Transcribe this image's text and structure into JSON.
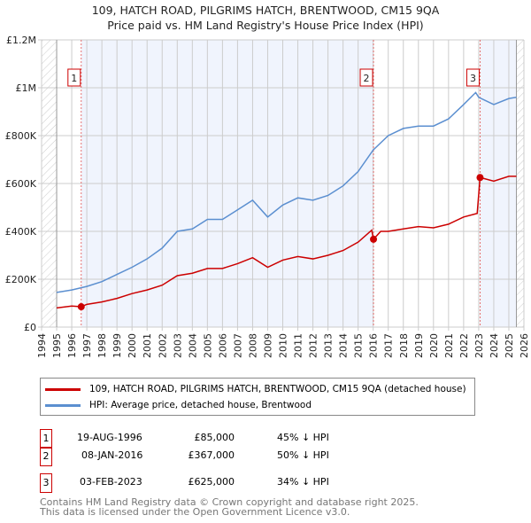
{
  "chart_data": {
    "type": "line",
    "title": "109, HATCH ROAD, PILGRIMS HATCH, BRENTWOOD, CM15 9QA",
    "subtitle": "Price paid vs. HM Land Registry's House Price Index (HPI)",
    "xlim": [
      1994,
      2026
    ],
    "ylim": [
      0,
      1200000
    ],
    "xticks": [
      "1994",
      "1995",
      "1996",
      "1997",
      "1998",
      "1999",
      "2000",
      "2001",
      "2002",
      "2003",
      "2004",
      "2005",
      "2006",
      "2007",
      "2008",
      "2009",
      "2010",
      "2011",
      "2012",
      "2013",
      "2014",
      "2015",
      "2016",
      "2017",
      "2018",
      "2019",
      "2020",
      "2021",
      "2022",
      "2023",
      "2024",
      "2025",
      "2026"
    ],
    "yticks": [
      {
        "v": 0,
        "label": "£0"
      },
      {
        "v": 200000,
        "label": "£200K"
      },
      {
        "v": 400000,
        "label": "£400K"
      },
      {
        "v": 600000,
        "label": "£600K"
      },
      {
        "v": 800000,
        "label": "£800K"
      },
      {
        "v": 1000000,
        "label": "£1M"
      },
      {
        "v": 1200000,
        "label": "£1.2M"
      }
    ],
    "series": [
      {
        "name": "109, HATCH ROAD, PILGRIMS HATCH, BRENTWOOD, CM15 9QA (detached house)",
        "color": "#cc0000",
        "x": [
          1995,
          1996,
          1996.63,
          1997,
          1998,
          1999,
          2000,
          2001,
          2002,
          2003,
          2004,
          2005,
          2006,
          2007,
          2008,
          2009,
          2010,
          2011,
          2012,
          2013,
          2014,
          2015,
          2015.9,
          2016.02,
          2016.5,
          2017,
          2018,
          2019,
          2020,
          2021,
          2022,
          2022.9,
          2023.09,
          2024,
          2025,
          2025.5
        ],
        "y": [
          80000,
          88000,
          85000,
          95000,
          105000,
          120000,
          140000,
          155000,
          175000,
          215000,
          225000,
          245000,
          245000,
          265000,
          290000,
          250000,
          280000,
          295000,
          285000,
          300000,
          320000,
          355000,
          405000,
          367000,
          400000,
          400000,
          410000,
          420000,
          415000,
          430000,
          460000,
          475000,
          625000,
          610000,
          630000,
          630000
        ]
      },
      {
        "name": "HPI: Average price, detached house, Brentwood",
        "color": "#5b8fd0",
        "x": [
          1995,
          1996,
          1997,
          1998,
          1999,
          2000,
          2001,
          2002,
          2003,
          2004,
          2005,
          2006,
          2007,
          2008,
          2009,
          2010,
          2011,
          2012,
          2013,
          2014,
          2015,
          2016,
          2017,
          2018,
          2019,
          2020,
          2021,
          2022,
          2022.8,
          2023,
          2024,
          2025,
          2025.5
        ],
        "y": [
          145000,
          155000,
          170000,
          190000,
          220000,
          250000,
          285000,
          330000,
          400000,
          410000,
          450000,
          450000,
          490000,
          530000,
          460000,
          510000,
          540000,
          530000,
          550000,
          590000,
          650000,
          740000,
          800000,
          830000,
          840000,
          840000,
          870000,
          930000,
          980000,
          960000,
          930000,
          955000,
          960000
        ]
      }
    ],
    "sales": [
      {
        "id": "1",
        "x": 1996.63,
        "price": 85000,
        "date": "19-AUG-1996",
        "price_label": "£85,000",
        "hpi": "45% ↓ HPI"
      },
      {
        "id": "2",
        "x": 2016.02,
        "price": 367000,
        "date": "08-JAN-2016",
        "price_label": "£367,000",
        "hpi": "50% ↓ HPI"
      },
      {
        "id": "3",
        "x": 2023.09,
        "price": 625000,
        "date": "03-FEB-2023",
        "price_label": "£625,000",
        "hpi": "34% ↓ HPI"
      }
    ],
    "data_range": [
      1995,
      2025.5
    ]
  },
  "footer": {
    "line1": "Contains HM Land Registry data © Crown copyright and database right 2025.",
    "line2": "This data is licensed under the Open Government Licence v3.0."
  }
}
